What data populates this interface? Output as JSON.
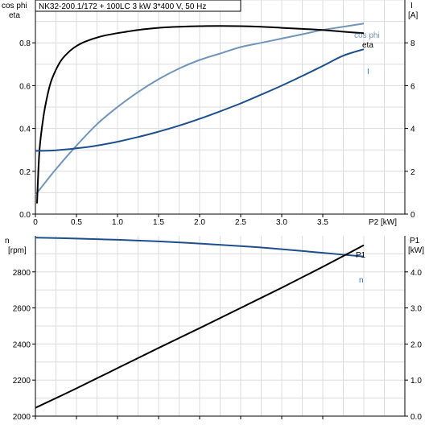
{
  "chart_data": [
    {
      "type": "line",
      "title": "NK32-200.1/172 + 100LC   3 kW   3*400 V, 50 Hz",
      "left_axis_label_line1": "cos phi",
      "left_axis_label_line2": "eta",
      "right_axis_label_line1": "I",
      "right_axis_label_line2": "[A]",
      "xlabel": "P2 [kW]",
      "xlim": [
        0,
        4.5
      ],
      "xticks": [
        0,
        0.5,
        1.0,
        1.5,
        2.0,
        2.5,
        3.0,
        3.5
      ],
      "xtick_labels": [
        "0",
        "0.5",
        "1.0",
        "1.5",
        "2.0",
        "2.5",
        "3.0",
        "3.5"
      ],
      "ylim_left": [
        0,
        1.0
      ],
      "yticks_left": [
        0,
        0.2,
        0.4,
        0.6,
        0.8
      ],
      "ytick_labels_left": [
        "0.0",
        "0.2",
        "0.4",
        "0.6",
        "0.8"
      ],
      "ylim_right": [
        0,
        10
      ],
      "yticks_right": [
        0,
        2,
        4,
        6,
        8
      ],
      "ytick_labels_right": [
        "0",
        "2",
        "4",
        "6",
        "8"
      ],
      "grid": true,
      "series": [
        {
          "name": "cos phi",
          "axis": "left",
          "color": "#6f95bb",
          "label_color": "#6f95bb",
          "x": [
            0,
            0.25,
            0.5,
            0.75,
            1.0,
            1.25,
            1.5,
            1.75,
            2.0,
            2.25,
            2.5,
            2.75,
            3.0,
            3.25,
            3.5,
            3.75,
            4.0
          ],
          "y": [
            0.09,
            0.21,
            0.32,
            0.42,
            0.5,
            0.57,
            0.63,
            0.68,
            0.72,
            0.75,
            0.78,
            0.8,
            0.82,
            0.84,
            0.86,
            0.875,
            0.89
          ]
        },
        {
          "name": "eta",
          "axis": "left",
          "color": "#000000",
          "label_color": "#000000",
          "x": [
            0.02,
            0.05,
            0.1,
            0.15,
            0.2,
            0.3,
            0.4,
            0.5,
            0.6,
            0.8,
            1.0,
            1.25,
            1.5,
            1.75,
            2.0,
            2.25,
            2.5,
            2.75,
            3.0,
            3.25,
            3.5,
            3.75,
            4.0
          ],
          "y": [
            0.05,
            0.3,
            0.46,
            0.56,
            0.63,
            0.71,
            0.755,
            0.785,
            0.805,
            0.83,
            0.845,
            0.86,
            0.87,
            0.875,
            0.878,
            0.879,
            0.878,
            0.875,
            0.87,
            0.865,
            0.86,
            0.852,
            0.845
          ]
        },
        {
          "name": "I",
          "axis": "right",
          "color": "#1c4f8c",
          "label_color": "#2f78c4",
          "x": [
            0,
            0.25,
            0.5,
            0.75,
            1.0,
            1.25,
            1.5,
            1.75,
            2.0,
            2.25,
            2.5,
            2.75,
            3.0,
            3.25,
            3.5,
            3.75,
            4.0
          ],
          "y": [
            2.95,
            2.98,
            3.07,
            3.2,
            3.38,
            3.6,
            3.85,
            4.13,
            4.45,
            4.8,
            5.17,
            5.58,
            6.0,
            6.45,
            6.92,
            7.4,
            7.7
          ]
        }
      ]
    },
    {
      "type": "line",
      "left_axis_label_line1": "n",
      "left_axis_label_line2": "[rpm]",
      "right_axis_label_line1": "P1",
      "right_axis_label_line2": "[kW]",
      "xlim": [
        0,
        4.5
      ],
      "xticks": [
        0,
        0.5,
        1.0,
        1.5,
        2.0,
        2.5,
        3.0,
        3.5
      ],
      "ylim_left": [
        2000,
        3000
      ],
      "yticks_left": [
        2000,
        2200,
        2400,
        2600,
        2800
      ],
      "ytick_labels_left": [
        "2000",
        "2200",
        "2400",
        "2600",
        "2800"
      ],
      "ylim_right": [
        0,
        5
      ],
      "yticks_right": [
        0,
        1,
        2,
        3,
        4
      ],
      "ytick_labels_right": [
        "0.0",
        "1.0",
        "2.0",
        "3.0",
        "4.0"
      ],
      "grid": true,
      "series": [
        {
          "name": "n",
          "axis": "left",
          "color": "#1c4f8c",
          "label_color": "#2f78c4",
          "x": [
            0,
            0.5,
            1.0,
            1.5,
            2.0,
            2.5,
            3.0,
            3.5,
            4.0
          ],
          "y": [
            2990,
            2985,
            2978,
            2969,
            2957,
            2943,
            2926,
            2906,
            2885
          ]
        },
        {
          "name": "P1",
          "axis": "right",
          "color": "#000000",
          "label_color": "#000000",
          "x": [
            0,
            0.5,
            1.0,
            1.5,
            2.0,
            2.5,
            3.0,
            3.5,
            4.0
          ],
          "y": [
            0.23,
            0.77,
            1.33,
            1.89,
            2.44,
            3.0,
            3.56,
            4.14,
            4.74
          ]
        }
      ]
    }
  ]
}
